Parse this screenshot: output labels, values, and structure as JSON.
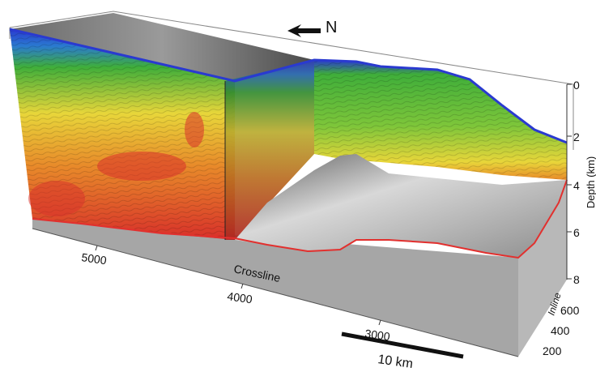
{
  "north_label": "N",
  "depth_axis": {
    "label": "Depth (km)",
    "ticks": [
      "0",
      "2",
      "4",
      "6",
      "8"
    ]
  },
  "crossline_axis": {
    "label": "Crossline",
    "ticks": [
      "5000",
      "4000",
      "3000"
    ]
  },
  "inline_axis": {
    "label": "Inline",
    "ticks": [
      "200",
      "400",
      "600"
    ]
  },
  "scale_bar": {
    "label": "10 km"
  },
  "colors": {
    "shallow": "#2a3ad0",
    "mid_green": "#3fae3a",
    "mid_yellow": "#e8d63a",
    "orange": "#e88a2a",
    "deep_red": "#d8302a",
    "horizon_line": "#e2302e",
    "base_gray": "#a9a9a9"
  }
}
